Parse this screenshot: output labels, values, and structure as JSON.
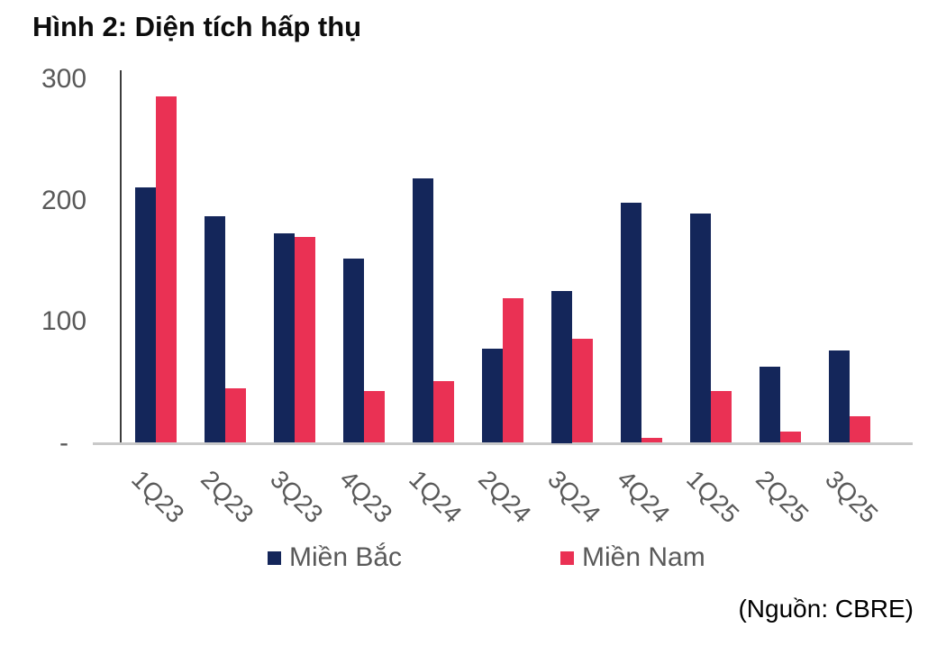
{
  "figure": {
    "title": "Hình 2: Diện tích hấp thụ",
    "source": "(Nguồn: CBRE)"
  },
  "colors": {
    "north": "#14265a",
    "south": "#ea3154",
    "axis_text": "#595959",
    "axis_line": "#3d3d3d",
    "baseline": "#c9c9c9"
  },
  "chart_data": {
    "type": "bar",
    "title": "Hình 2: Diện tích hấp thụ",
    "categories": [
      "1Q23",
      "2Q23",
      "3Q23",
      "4Q23",
      "1Q24",
      "2Q24",
      "3Q24",
      "4Q24",
      "1Q25",
      "2Q25",
      "3Q25"
    ],
    "series": [
      {
        "name": "Miền Bắc",
        "color": "#14265a",
        "values": [
          211,
          187,
          173,
          152,
          218,
          78,
          125,
          198,
          189,
          63,
          76
        ]
      },
      {
        "name": "Miền Nam",
        "color": "#ea3154",
        "values": [
          286,
          45,
          170,
          43,
          51,
          119,
          86,
          4,
          43,
          9,
          22
        ]
      }
    ],
    "xlabel": "",
    "ylabel": "",
    "ylim": [
      0,
      300
    ],
    "yticks": [
      {
        "value": 0,
        "label": "-"
      },
      {
        "value": 100,
        "label": "100"
      },
      {
        "value": 200,
        "label": "200"
      },
      {
        "value": 300,
        "label": "300"
      }
    ],
    "grid": false,
    "legend_position": "bottom",
    "x_tick_rotation_deg": 45
  }
}
